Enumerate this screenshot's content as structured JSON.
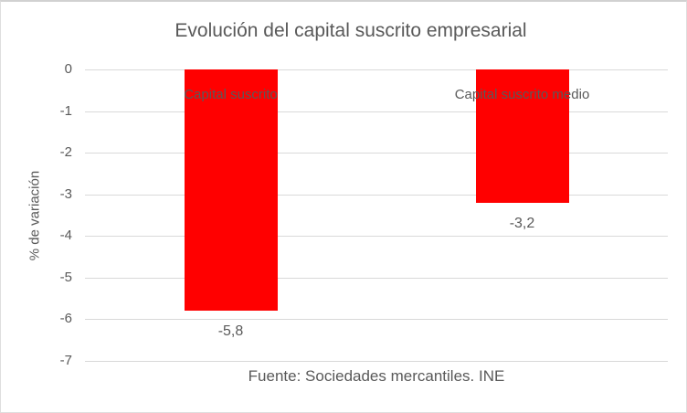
{
  "colors": {
    "bar": "#ff0000",
    "text": "#595959",
    "gridline": "#d9d9d9",
    "frame_border": "#d1d1d1",
    "background": "#ffffff"
  },
  "chart_data": {
    "type": "bar",
    "title": "Evolución del capital suscrito empresarial",
    "ylabel": "% de variación",
    "xlabel": "",
    "categories": [
      "Capital suscrito",
      "Capital suscrito medio"
    ],
    "values": [
      -5.8,
      -3.2
    ],
    "value_labels": [
      "-5,8",
      "-3,2"
    ],
    "ylim": [
      -7,
      0
    ],
    "yticks": [
      0,
      -1,
      -2,
      -3,
      -4,
      -5,
      -6,
      -7
    ],
    "ytick_labels": [
      "0",
      "-1",
      "-2",
      "-3",
      "-4",
      "-5",
      "-6",
      "-7"
    ],
    "grid": true,
    "legend": false,
    "source_note": "Fuente: Sociedades mercantiles. INE"
  }
}
